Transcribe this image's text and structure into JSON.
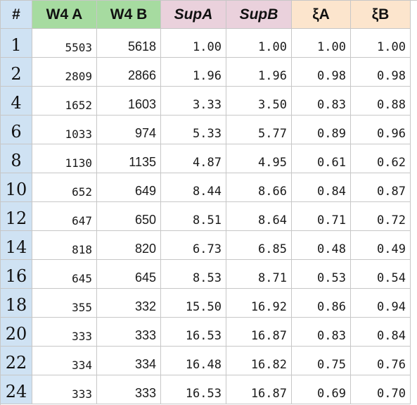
{
  "headers": {
    "row_num": "#",
    "w4a": "W4 A",
    "w4b": "W4 B",
    "supa": "SupA",
    "supb": "SupB",
    "xia": "ξA",
    "xib": "ξB"
  },
  "colors": {
    "row_header_bg": "#cfe2f3",
    "w4_header_bg": "#a6dba0",
    "sup_header_bg": "#ead1dc",
    "xi_header_bg": "#fce5cd",
    "gridline": "#c7c7c7"
  },
  "rows": [
    {
      "n": "1",
      "w4a": "5503",
      "w4b": "5618",
      "supa": "1.00",
      "supb": "1.00",
      "xia": "1.00",
      "xib": "1.00"
    },
    {
      "n": "2",
      "w4a": "2809",
      "w4b": "2866",
      "supa": "1.96",
      "supb": "1.96",
      "xia": "0.98",
      "xib": "0.98"
    },
    {
      "n": "4",
      "w4a": "1652",
      "w4b": "1603",
      "supa": "3.33",
      "supb": "3.50",
      "xia": "0.83",
      "xib": "0.88"
    },
    {
      "n": "6",
      "w4a": "1033",
      "w4b": "974",
      "supa": "5.33",
      "supb": "5.77",
      "xia": "0.89",
      "xib": "0.96"
    },
    {
      "n": "8",
      "w4a": "1130",
      "w4b": "1135",
      "supa": "4.87",
      "supb": "4.95",
      "xia": "0.61",
      "xib": "0.62"
    },
    {
      "n": "10",
      "w4a": "652",
      "w4b": "649",
      "supa": "8.44",
      "supb": "8.66",
      "xia": "0.84",
      "xib": "0.87"
    },
    {
      "n": "12",
      "w4a": "647",
      "w4b": "650",
      "supa": "8.51",
      "supb": "8.64",
      "xia": "0.71",
      "xib": "0.72"
    },
    {
      "n": "14",
      "w4a": "818",
      "w4b": "820",
      "supa": "6.73",
      "supb": "6.85",
      "xia": "0.48",
      "xib": "0.49"
    },
    {
      "n": "16",
      "w4a": "645",
      "w4b": "645",
      "supa": "8.53",
      "supb": "8.71",
      "xia": "0.53",
      "xib": "0.54"
    },
    {
      "n": "18",
      "w4a": "355",
      "w4b": "332",
      "supa": "15.50",
      "supb": "16.92",
      "xia": "0.86",
      "xib": "0.94"
    },
    {
      "n": "20",
      "w4a": "333",
      "w4b": "333",
      "supa": "16.53",
      "supb": "16.87",
      "xia": "0.83",
      "xib": "0.84"
    },
    {
      "n": "22",
      "w4a": "334",
      "w4b": "334",
      "supa": "16.48",
      "supb": "16.82",
      "xia": "0.75",
      "xib": "0.76"
    },
    {
      "n": "24",
      "w4a": "333",
      "w4b": "333",
      "supa": "16.53",
      "supb": "16.87",
      "xia": "0.69",
      "xib": "0.70"
    }
  ]
}
